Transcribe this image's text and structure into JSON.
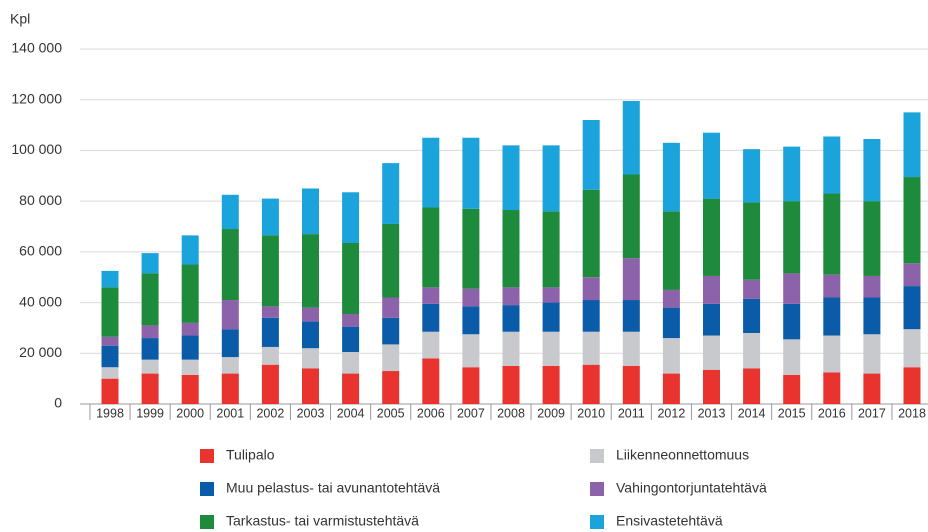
{
  "chart_data": {
    "type": "stacked_bar",
    "y_label": "Kpl",
    "categories": [
      "1998",
      "1999",
      "2000",
      "2001",
      "2002",
      "2003",
      "2004",
      "2005",
      "2006",
      "2007",
      "2008",
      "2009",
      "2010",
      "2011",
      "2012",
      "2013",
      "2014",
      "2015",
      "2016",
      "2017",
      "2018"
    ],
    "series": [
      {
        "name": "Tulipalo",
        "color": "#e8332f",
        "values": [
          10000,
          12000,
          11500,
          12000,
          15500,
          14000,
          12000,
          13000,
          18000,
          14500,
          15000,
          15000,
          15500,
          15000,
          12000,
          13500,
          14000,
          11500,
          12500,
          12000,
          14500
        ]
      },
      {
        "name": "Liikenneonnettomuus",
        "color": "#c8c9cc",
        "values": [
          4500,
          5500,
          6000,
          6500,
          7000,
          8000,
          8500,
          10500,
          10500,
          13000,
          13500,
          13500,
          13000,
          13500,
          14000,
          13500,
          14000,
          14000,
          14500,
          15500,
          15000
        ]
      },
      {
        "name": "Muu pelastus- tai avunantotehtävä",
        "color": "#0a5ca8",
        "values": [
          8500,
          8500,
          9500,
          11000,
          11500,
          10500,
          10000,
          10500,
          11000,
          11000,
          10500,
          11500,
          12500,
          12500,
          12000,
          12500,
          13500,
          14000,
          15000,
          14500,
          17000
        ]
      },
      {
        "name": "Vahingontorjuntatehtävä",
        "color": "#8c62aa",
        "values": [
          3500,
          5000,
          5000,
          11500,
          4500,
          5500,
          5000,
          8000,
          6500,
          7000,
          7000,
          6000,
          9000,
          16500,
          7000,
          11000,
          7500,
          12000,
          9000,
          8500,
          9000
        ]
      },
      {
        "name": "Tarkastus- tai varmistustehtävä",
        "color": "#1e8a3c",
        "values": [
          19500,
          20500,
          23000,
          28000,
          28000,
          29000,
          28000,
          29000,
          31500,
          31500,
          30500,
          30000,
          34500,
          33000,
          31000,
          30500,
          30500,
          28500,
          32000,
          29500,
          34000
        ]
      },
      {
        "name": "Ensivastetehtävä",
        "color": "#1ba3dc",
        "values": [
          6500,
          8000,
          11500,
          13500,
          14500,
          18000,
          20000,
          24000,
          27500,
          28000,
          25500,
          26000,
          27500,
          29000,
          27000,
          26000,
          21000,
          21500,
          22500,
          24500,
          25500
        ]
      }
    ],
    "ylim": [
      0,
      140000
    ],
    "yticks": [
      0,
      {
        "value": 20000,
        "label": "20 000"
      },
      {
        "value": 40000,
        "label": "40 000"
      },
      {
        "value": 60000,
        "label": "60 000"
      },
      {
        "value": 80000,
        "label": "80 000"
      },
      {
        "value": 100000,
        "label": "100 000"
      },
      {
        "value": 120000,
        "label": "120 000"
      },
      {
        "value": 140000,
        "label": "140 000"
      }
    ],
    "grid": true
  }
}
